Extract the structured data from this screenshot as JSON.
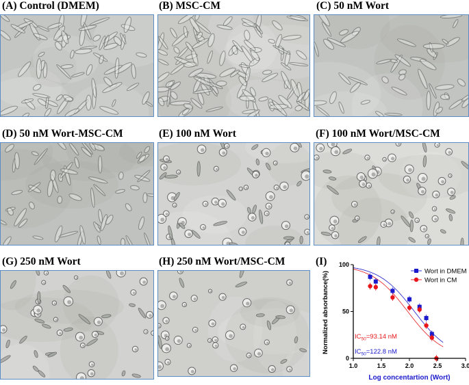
{
  "panels": [
    {
      "id": "A",
      "label": "(A) Control (DMEM)",
      "tone": "#c4c6c3",
      "cells": "spindle",
      "density": 0.55
    },
    {
      "id": "B",
      "label": "(B) MSC-CM",
      "tone": "#c9cac6",
      "cells": "spindle",
      "density": 0.85
    },
    {
      "id": "C",
      "label": "(C) 50 nM Wort",
      "tone": "#c2c4c1",
      "cells": "spindle",
      "density": 0.35
    },
    {
      "id": "D",
      "label": "(D) 50 nM Wort-MSC-CM",
      "tone": "#bfc2be",
      "cells": "spindle",
      "density": 0.45
    },
    {
      "id": "E",
      "label": "(E) 100 nM Wort",
      "tone": "#d3d4d1",
      "cells": "rounded",
      "density": 0.6
    },
    {
      "id": "F",
      "label": "(F) 100 nM Wort/MSC-CM",
      "tone": "#dcdcd9",
      "cells": "rounded",
      "density": 0.55
    },
    {
      "id": "G",
      "label": "(G) 250 nM Wort",
      "tone": "#d2d3d0",
      "cells": "rounded",
      "density": 0.45
    },
    {
      "id": "H",
      "label": "(H) 250 nM Wort/MSC-CM",
      "tone": "#cfd0cc",
      "cells": "rounded",
      "density": 0.4
    }
  ],
  "chart_label": "(I)",
  "chart_data": {
    "type": "scatter",
    "xlabel": "Log concentartion (Wort)",
    "ylabel": "Normalized absorbance(%)",
    "xlim": [
      1.0,
      3.0
    ],
    "ylim": [
      0,
      100
    ],
    "xticks": [
      "1.0",
      "1.5",
      "2.0",
      "2.5",
      "3.0"
    ],
    "yticks": [
      "0",
      "50",
      "100"
    ],
    "legend_position": "top-right",
    "series": [
      {
        "name": "Wort in DMEM",
        "color": "#1a1acc",
        "marker": "square",
        "x": [
          1.3,
          1.4,
          1.7,
          2.0,
          2.18,
          2.3,
          2.4
        ],
        "y": [
          87,
          82,
          72,
          63,
          55,
          43,
          26
        ],
        "curve_ic50_log": 2.089
      },
      {
        "name": "Wort in CM",
        "color": "#e8161b",
        "marker": "circle",
        "x": [
          1.3,
          1.4,
          1.7,
          2.0,
          2.18,
          2.3,
          2.4,
          2.48
        ],
        "y": [
          77,
          76,
          65,
          54,
          52,
          35,
          22,
          0
        ],
        "curve_ic50_log": 1.969
      }
    ],
    "annotations": [
      {
        "text_main": "IC",
        "text_sub": "50",
        "text_rest": "=93.14 nM",
        "color": "#e8161b"
      },
      {
        "text_main": "IC",
        "text_sub": "50",
        "text_rest": "=122.8 nM",
        "color": "#1a1acc"
      }
    ]
  }
}
